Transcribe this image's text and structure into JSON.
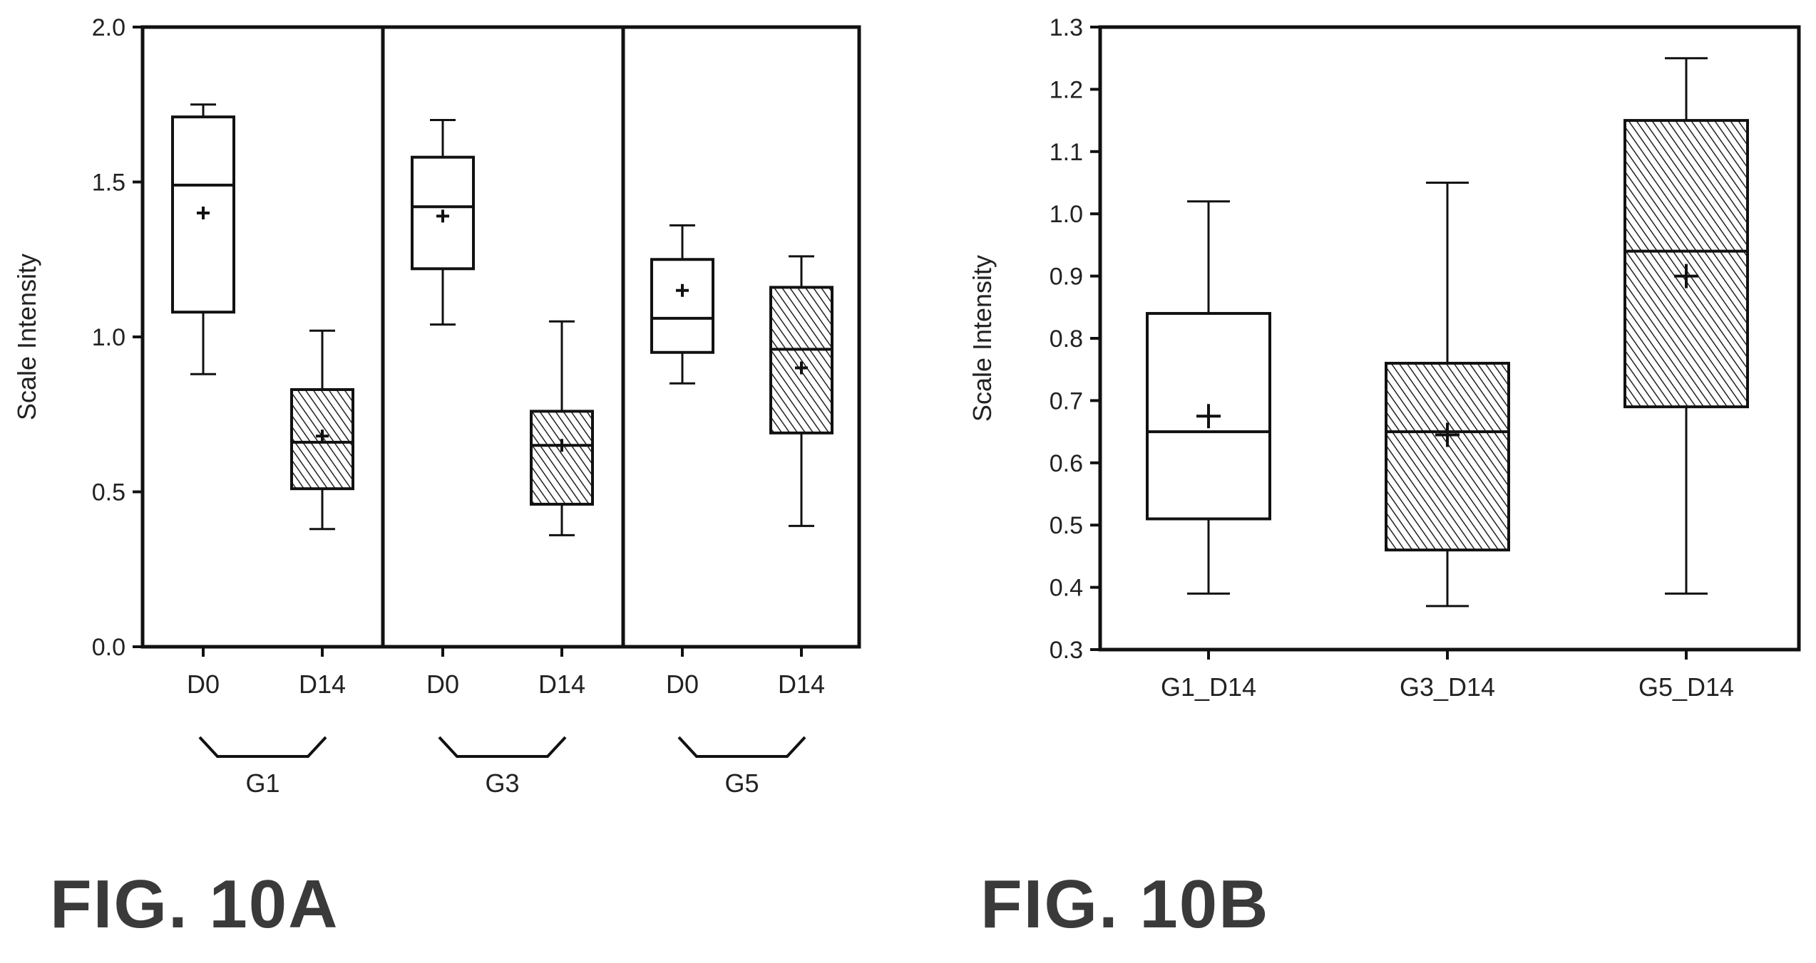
{
  "chart_data": [
    {
      "type": "box",
      "caption": "FIG. 10A",
      "ylabel": "Scale Intensity",
      "ylim": [
        0.0,
        2.0
      ],
      "yticks": [
        "0.0",
        "0.5",
        "1.0",
        "1.5",
        "2.0"
      ],
      "groups": [
        "G1",
        "G3",
        "G5"
      ],
      "categories": [
        "D0",
        "D14",
        "D0",
        "D14",
        "D0",
        "D14"
      ],
      "boxes": [
        {
          "group": "G1",
          "label": "D0",
          "hatched": false,
          "whisker_low": 0.88,
          "q1": 1.08,
          "median": 1.49,
          "q3": 1.71,
          "whisker_high": 1.75,
          "mean": 1.4
        },
        {
          "group": "G1",
          "label": "D14",
          "hatched": true,
          "whisker_low": 0.38,
          "q1": 0.51,
          "median": 0.66,
          "q3": 0.83,
          "whisker_high": 1.02,
          "mean": 0.68
        },
        {
          "group": "G3",
          "label": "D0",
          "hatched": false,
          "whisker_low": 1.04,
          "q1": 1.22,
          "median": 1.42,
          "q3": 1.58,
          "whisker_high": 1.7,
          "mean": 1.39
        },
        {
          "group": "G3",
          "label": "D14",
          "hatched": true,
          "whisker_low": 0.36,
          "q1": 0.46,
          "median": 0.65,
          "q3": 0.76,
          "whisker_high": 1.05,
          "mean": 0.65
        },
        {
          "group": "G5",
          "label": "D0",
          "hatched": false,
          "whisker_low": 0.85,
          "q1": 0.95,
          "median": 1.06,
          "q3": 1.25,
          "whisker_high": 1.36,
          "mean": 1.15
        },
        {
          "group": "G5",
          "label": "D14",
          "hatched": true,
          "whisker_low": 0.39,
          "q1": 0.69,
          "median": 0.96,
          "q3": 1.16,
          "whisker_high": 1.26,
          "mean": 0.9
        }
      ]
    },
    {
      "type": "box",
      "caption": "FIG. 10B",
      "ylabel": "Scale Intensity",
      "ylim": [
        0.3,
        1.3
      ],
      "yticks": [
        "0.3",
        "0.4",
        "0.5",
        "0.6",
        "0.7",
        "0.8",
        "0.9",
        "1.0",
        "1.1",
        "1.2",
        "1.3"
      ],
      "categories": [
        "G1_D14",
        "G3_D14",
        "G5_D14"
      ],
      "boxes": [
        {
          "label": "G1_D14",
          "hatched": false,
          "whisker_low": 0.39,
          "q1": 0.51,
          "median": 0.65,
          "q3": 0.84,
          "whisker_high": 1.02,
          "mean": 0.675
        },
        {
          "label": "G3_D14",
          "hatched": true,
          "whisker_low": 0.37,
          "q1": 0.46,
          "median": 0.65,
          "q3": 0.76,
          "whisker_high": 1.05,
          "mean": 0.645
        },
        {
          "label": "G5_D14",
          "hatched": true,
          "whisker_low": 0.39,
          "q1": 0.69,
          "median": 0.94,
          "q3": 1.15,
          "whisker_high": 1.25,
          "mean": 0.9
        }
      ]
    }
  ]
}
